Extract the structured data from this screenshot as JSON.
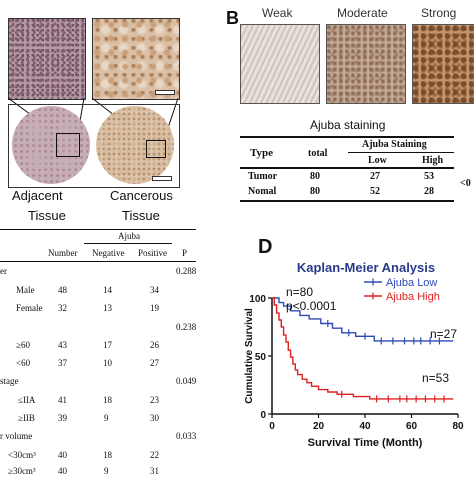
{
  "panel_a": {
    "labels": [
      "Adjacent",
      "Cancerous"
    ],
    "labels2": [
      "Tissue",
      "Tissue"
    ]
  },
  "panel_b": {
    "letter": "B",
    "stain_labels": [
      "Weak",
      "Moderate",
      "Strong"
    ],
    "caption": "Ajuba staining",
    "table": {
      "h_type": "Type",
      "h_total": "total",
      "h_group": "Ajuba Staining",
      "h_low": "Low",
      "h_high": "High",
      "rows": [
        {
          "type": "Tumor",
          "total": "80",
          "low": "27",
          "high": "53"
        },
        {
          "type": "Nomal",
          "total": "80",
          "low": "52",
          "high": "28"
        }
      ],
      "p_fragment": "<0"
    }
  },
  "panel_c": {
    "h_number": "Number",
    "h_group": "Ajuba",
    "h_neg": "Negative",
    "h_pos": "Positive",
    "h_p": "P",
    "rows": [
      {
        "label": "er",
        "number": "",
        "neg": "",
        "pos": "",
        "p": "0.288"
      },
      {
        "label": "Male",
        "number": "48",
        "neg": "14",
        "pos": "34",
        "p": ""
      },
      {
        "label": "Female",
        "number": "32",
        "neg": "13",
        "pos": "19",
        "p": ""
      },
      {
        "label": "",
        "number": "",
        "neg": "",
        "pos": "",
        "p": "0.238"
      },
      {
        "label": "≥60",
        "number": "43",
        "neg": "17",
        "pos": "26",
        "p": ""
      },
      {
        "label": "<60",
        "number": "37",
        "neg": "10",
        "pos": "27",
        "p": ""
      },
      {
        "label": "stage",
        "number": "",
        "neg": "",
        "pos": "",
        "p": "0.049"
      },
      {
        "label": "≤IIA",
        "number": "41",
        "neg": "18",
        "pos": "23",
        "p": ""
      },
      {
        "label": "≥IIB",
        "number": "39",
        "neg": "9",
        "pos": "30",
        "p": ""
      },
      {
        "label": "r volume",
        "number": "",
        "neg": "",
        "pos": "",
        "p": "0.033"
      },
      {
        "label": "<30cm³",
        "number": "40",
        "neg": "18",
        "pos": "22",
        "p": ""
      },
      {
        "label": "≥30cm³",
        "number": "40",
        "neg": "9",
        "pos": "31",
        "p": ""
      }
    ]
  },
  "panel_d": {
    "letter": "D"
  },
  "chart_data": {
    "type": "line",
    "title": "Kaplan-Meier Analysis",
    "xlabel": "Survival Time (Month)",
    "ylabel": "Cumulative Survival",
    "xlim": [
      0,
      80
    ],
    "ylim": [
      0,
      100
    ],
    "xticks": [
      0,
      20,
      40,
      60,
      80
    ],
    "yticks": [
      0,
      50,
      100
    ],
    "legend_position": "top-right",
    "annotations": [
      "n=80",
      "p<0.0001",
      "n=27",
      "n=53"
    ],
    "series": [
      {
        "name": "Ajuba Low",
        "color": "#2f4bb5",
        "steps": [
          [
            0,
            100
          ],
          [
            3,
            100
          ],
          [
            3,
            96
          ],
          [
            5,
            96
          ],
          [
            5,
            93
          ],
          [
            8,
            93
          ],
          [
            8,
            89
          ],
          [
            12,
            89
          ],
          [
            12,
            85
          ],
          [
            16,
            85
          ],
          [
            16,
            82
          ],
          [
            21,
            82
          ],
          [
            21,
            78
          ],
          [
            26,
            78
          ],
          [
            26,
            74
          ],
          [
            30,
            74
          ],
          [
            30,
            70
          ],
          [
            36,
            70
          ],
          [
            36,
            67
          ],
          [
            44,
            67
          ],
          [
            44,
            63
          ],
          [
            78,
            63
          ]
        ],
        "censors": [
          [
            24,
            78
          ],
          [
            33,
            70
          ],
          [
            40,
            67
          ],
          [
            47,
            63
          ],
          [
            52,
            63
          ],
          [
            57,
            63
          ],
          [
            61,
            63
          ],
          [
            64,
            63
          ],
          [
            68,
            63
          ],
          [
            72,
            63
          ]
        ]
      },
      {
        "name": "Ajuba High",
        "color": "#e02020",
        "steps": [
          [
            0,
            100
          ],
          [
            1,
            100
          ],
          [
            1,
            94
          ],
          [
            2,
            94
          ],
          [
            2,
            87
          ],
          [
            3,
            87
          ],
          [
            3,
            81
          ],
          [
            4,
            81
          ],
          [
            4,
            75
          ],
          [
            5,
            75
          ],
          [
            5,
            68
          ],
          [
            6,
            68
          ],
          [
            6,
            62
          ],
          [
            7,
            62
          ],
          [
            7,
            55
          ],
          [
            8,
            55
          ],
          [
            8,
            49
          ],
          [
            9,
            49
          ],
          [
            9,
            43
          ],
          [
            10,
            43
          ],
          [
            10,
            38
          ],
          [
            11,
            38
          ],
          [
            11,
            34
          ],
          [
            13,
            34
          ],
          [
            13,
            30
          ],
          [
            15,
            30
          ],
          [
            15,
            27
          ],
          [
            17,
            27
          ],
          [
            17,
            24
          ],
          [
            20,
            24
          ],
          [
            20,
            21
          ],
          [
            24,
            21
          ],
          [
            24,
            19
          ],
          [
            28,
            19
          ],
          [
            28,
            17
          ],
          [
            35,
            17
          ],
          [
            35,
            15
          ],
          [
            42,
            15
          ],
          [
            42,
            13
          ],
          [
            78,
            13
          ]
        ],
        "censors": [
          [
            30,
            17
          ],
          [
            45,
            13
          ],
          [
            50,
            13
          ],
          [
            55,
            13
          ],
          [
            58,
            13
          ],
          [
            62,
            13
          ],
          [
            66,
            13
          ],
          [
            70,
            13
          ],
          [
            74,
            13
          ]
        ]
      }
    ]
  }
}
